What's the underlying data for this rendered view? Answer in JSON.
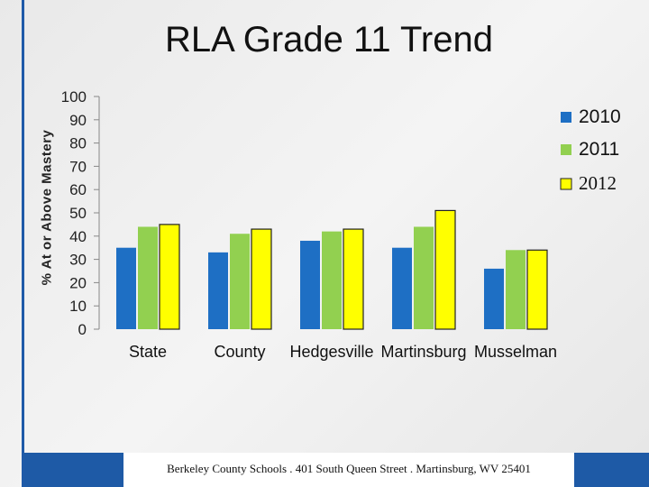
{
  "chart_data": {
    "type": "bar",
    "title": "RLA Grade 11 Trend",
    "ylabel": "% At or Above Mastery",
    "xlabel": "",
    "categories": [
      "State",
      "County",
      "Hedgesville",
      "Martinsburg",
      "Musselman"
    ],
    "series": [
      {
        "name": "2010",
        "color": "#1e6fc4",
        "values": [
          35,
          33,
          38,
          35,
          26
        ]
      },
      {
        "name": "2011",
        "color": "#92d050",
        "values": [
          44,
          41,
          42,
          44,
          34
        ]
      },
      {
        "name": "2012",
        "color": "#ffff00",
        "values": [
          45,
          43,
          43,
          51,
          34
        ]
      }
    ],
    "ylim": [
      0,
      100
    ],
    "yticks": [
      0,
      10,
      20,
      30,
      40,
      50,
      60,
      70,
      80,
      90,
      100
    ],
    "grid": false,
    "legend": "right"
  },
  "footer": {
    "text": "Berkeley County Schools . 401 South Queen Street . Martinsburg, WV 25401"
  }
}
